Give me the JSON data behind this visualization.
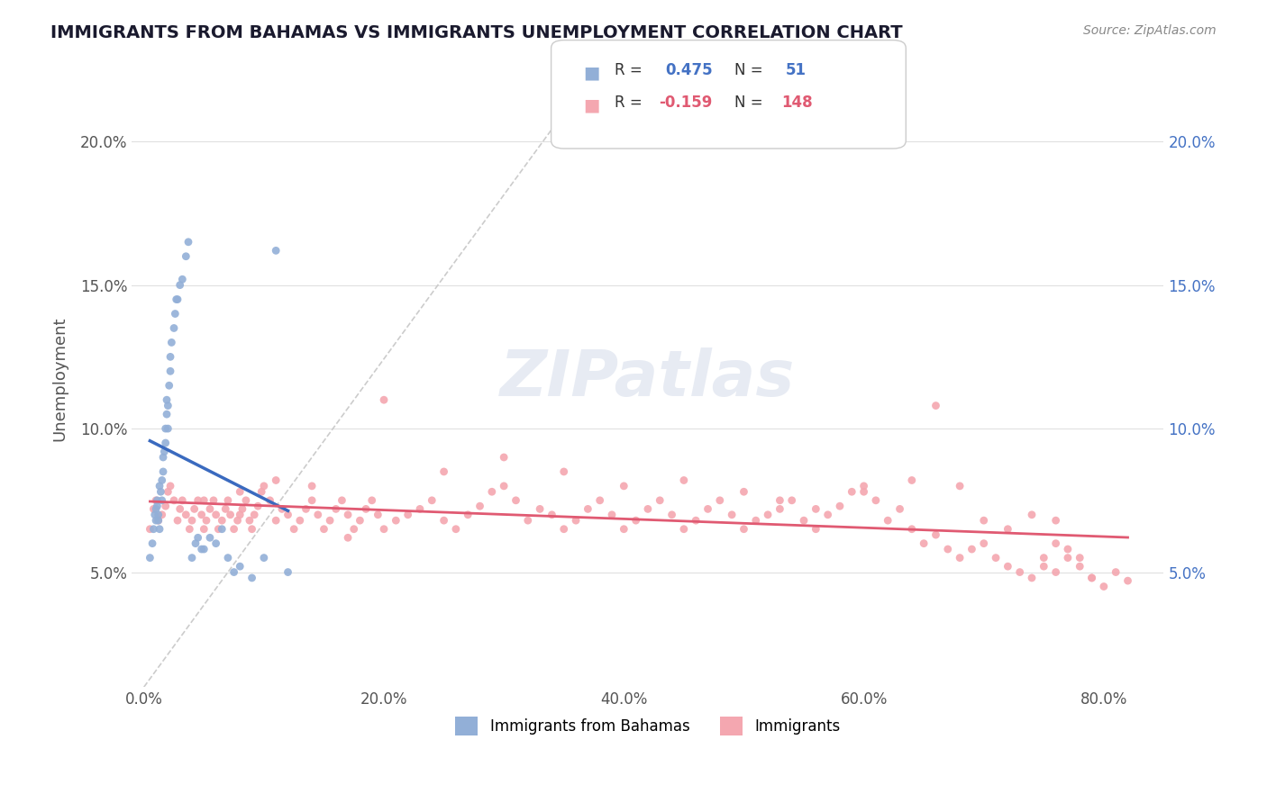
{
  "title": "IMMIGRANTS FROM BAHAMAS VS IMMIGRANTS UNEMPLOYMENT CORRELATION CHART",
  "source_text": "Source: ZipAtlas.com",
  "xlabel": "",
  "ylabel": "Unemployment",
  "x_tick_labels": [
    "0.0%",
    "20.0%",
    "40.0%",
    "60.0%",
    "80.0%"
  ],
  "x_tick_values": [
    0.0,
    0.2,
    0.4,
    0.6,
    0.8
  ],
  "y_tick_labels": [
    "5.0%",
    "10.0%",
    "15.0%",
    "20.0%"
  ],
  "y_tick_values": [
    0.05,
    0.1,
    0.15,
    0.2
  ],
  "xlim": [
    -0.01,
    0.85
  ],
  "ylim": [
    0.01,
    0.22
  ],
  "blue_R": 0.475,
  "blue_N": 51,
  "pink_R": -0.159,
  "pink_N": 148,
  "blue_color": "#92afd7",
  "pink_color": "#f4a7b0",
  "blue_line_color": "#3a6abf",
  "pink_line_color": "#e05a72",
  "legend_box_color": "#e8e8e8",
  "watermark_color": "#d0d8e8",
  "title_color": "#1a1a2e",
  "blue_scatter_x": [
    0.005,
    0.007,
    0.008,
    0.009,
    0.01,
    0.01,
    0.011,
    0.011,
    0.012,
    0.012,
    0.013,
    0.013,
    0.014,
    0.015,
    0.015,
    0.016,
    0.016,
    0.017,
    0.018,
    0.018,
    0.019,
    0.019,
    0.02,
    0.02,
    0.021,
    0.022,
    0.022,
    0.023,
    0.025,
    0.026,
    0.027,
    0.028,
    0.03,
    0.032,
    0.035,
    0.037,
    0.04,
    0.043,
    0.045,
    0.048,
    0.05,
    0.055,
    0.06,
    0.065,
    0.07,
    0.075,
    0.08,
    0.09,
    0.1,
    0.11,
    0.12
  ],
  "blue_scatter_y": [
    0.055,
    0.06,
    0.065,
    0.07,
    0.068,
    0.072,
    0.073,
    0.075,
    0.07,
    0.068,
    0.065,
    0.08,
    0.078,
    0.082,
    0.075,
    0.09,
    0.085,
    0.092,
    0.095,
    0.1,
    0.105,
    0.11,
    0.1,
    0.108,
    0.115,
    0.12,
    0.125,
    0.13,
    0.135,
    0.14,
    0.145,
    0.145,
    0.15,
    0.152,
    0.16,
    0.165,
    0.055,
    0.06,
    0.062,
    0.058,
    0.058,
    0.062,
    0.06,
    0.065,
    0.055,
    0.05,
    0.052,
    0.048,
    0.055,
    0.162,
    0.05
  ],
  "pink_scatter_x": [
    0.005,
    0.008,
    0.01,
    0.012,
    0.015,
    0.018,
    0.02,
    0.022,
    0.025,
    0.028,
    0.03,
    0.032,
    0.035,
    0.038,
    0.04,
    0.042,
    0.045,
    0.048,
    0.05,
    0.052,
    0.055,
    0.058,
    0.06,
    0.062,
    0.065,
    0.068,
    0.07,
    0.072,
    0.075,
    0.078,
    0.08,
    0.082,
    0.085,
    0.088,
    0.09,
    0.092,
    0.095,
    0.098,
    0.1,
    0.105,
    0.11,
    0.115,
    0.12,
    0.125,
    0.13,
    0.135,
    0.14,
    0.145,
    0.15,
    0.155,
    0.16,
    0.165,
    0.17,
    0.175,
    0.18,
    0.185,
    0.19,
    0.195,
    0.2,
    0.21,
    0.22,
    0.23,
    0.24,
    0.25,
    0.26,
    0.27,
    0.28,
    0.29,
    0.3,
    0.31,
    0.32,
    0.33,
    0.34,
    0.35,
    0.36,
    0.37,
    0.38,
    0.39,
    0.4,
    0.41,
    0.42,
    0.43,
    0.44,
    0.45,
    0.46,
    0.47,
    0.48,
    0.49,
    0.5,
    0.51,
    0.52,
    0.53,
    0.54,
    0.55,
    0.56,
    0.57,
    0.58,
    0.59,
    0.6,
    0.61,
    0.62,
    0.63,
    0.64,
    0.65,
    0.66,
    0.67,
    0.68,
    0.69,
    0.7,
    0.71,
    0.72,
    0.73,
    0.74,
    0.75,
    0.76,
    0.77,
    0.78,
    0.79,
    0.8,
    0.81,
    0.82,
    0.75,
    0.76,
    0.77,
    0.78,
    0.79,
    0.25,
    0.3,
    0.35,
    0.4,
    0.45,
    0.5,
    0.53,
    0.56,
    0.6,
    0.64,
    0.66,
    0.68,
    0.7,
    0.72,
    0.74,
    0.76,
    0.05,
    0.08,
    0.11,
    0.14,
    0.17,
    0.2
  ],
  "pink_scatter_y": [
    0.065,
    0.072,
    0.075,
    0.068,
    0.07,
    0.073,
    0.078,
    0.08,
    0.075,
    0.068,
    0.072,
    0.075,
    0.07,
    0.065,
    0.068,
    0.072,
    0.075,
    0.07,
    0.065,
    0.068,
    0.072,
    0.075,
    0.07,
    0.065,
    0.068,
    0.072,
    0.075,
    0.07,
    0.065,
    0.068,
    0.07,
    0.072,
    0.075,
    0.068,
    0.065,
    0.07,
    0.073,
    0.078,
    0.08,
    0.075,
    0.068,
    0.072,
    0.07,
    0.065,
    0.068,
    0.072,
    0.075,
    0.07,
    0.065,
    0.068,
    0.072,
    0.075,
    0.07,
    0.065,
    0.068,
    0.072,
    0.075,
    0.07,
    0.065,
    0.068,
    0.07,
    0.072,
    0.075,
    0.068,
    0.065,
    0.07,
    0.073,
    0.078,
    0.08,
    0.075,
    0.068,
    0.072,
    0.07,
    0.065,
    0.068,
    0.072,
    0.075,
    0.07,
    0.065,
    0.068,
    0.072,
    0.075,
    0.07,
    0.065,
    0.068,
    0.072,
    0.075,
    0.07,
    0.065,
    0.068,
    0.07,
    0.072,
    0.075,
    0.068,
    0.065,
    0.07,
    0.073,
    0.078,
    0.08,
    0.075,
    0.068,
    0.072,
    0.065,
    0.06,
    0.063,
    0.058,
    0.055,
    0.058,
    0.06,
    0.055,
    0.052,
    0.05,
    0.048,
    0.052,
    0.05,
    0.055,
    0.052,
    0.048,
    0.045,
    0.05,
    0.047,
    0.055,
    0.06,
    0.058,
    0.055,
    0.048,
    0.085,
    0.09,
    0.085,
    0.08,
    0.082,
    0.078,
    0.075,
    0.072,
    0.078,
    0.082,
    0.108,
    0.08,
    0.068,
    0.065,
    0.07,
    0.068,
    0.075,
    0.078,
    0.082,
    0.08,
    0.062,
    0.11
  ]
}
